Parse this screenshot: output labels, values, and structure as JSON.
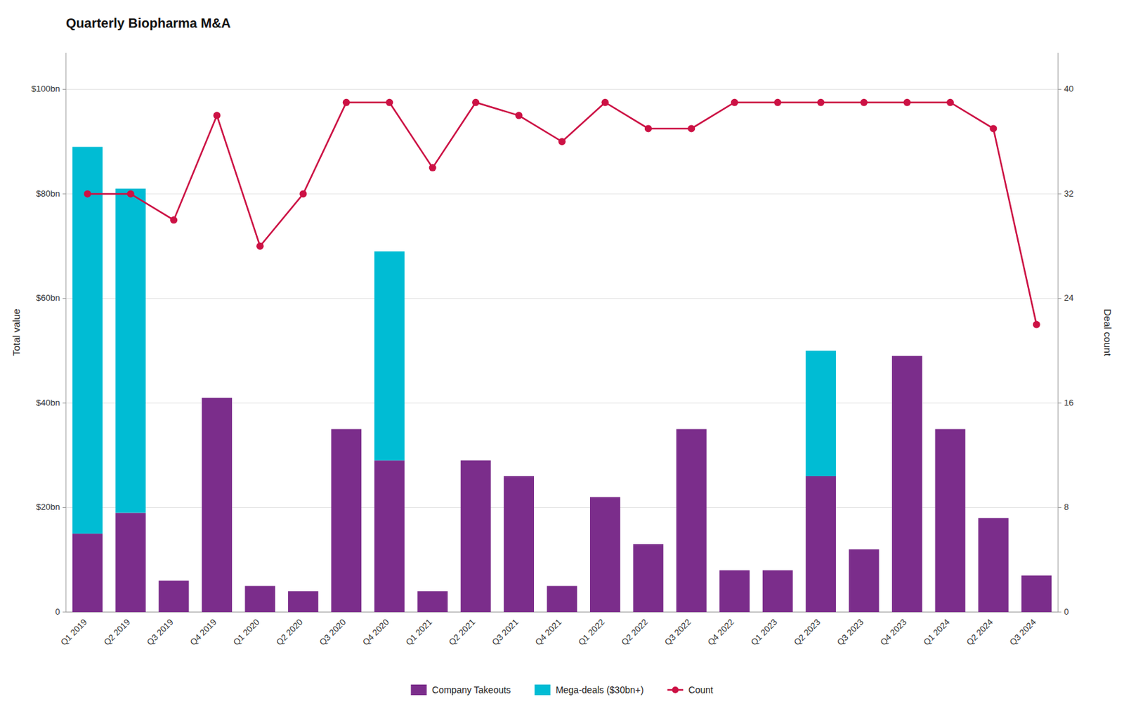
{
  "chart_data": {
    "type": "bar",
    "title": "Quarterly Biopharma M&A",
    "stacked": true,
    "grid": true,
    "legend": "bottom",
    "ylabel": "Total value",
    "y2label": "Deal count",
    "categories": [
      "Q1 2019",
      "Q2 2019",
      "Q3 2019",
      "Q4 2019",
      "Q1 2020",
      "Q2 2020",
      "Q3 2020",
      "Q4 2020",
      "Q1 2021",
      "Q2 2021",
      "Q3 2021",
      "Q4 2021",
      "Q1 2022",
      "Q2 2022",
      "Q3 2022",
      "Q4 2022",
      "Q1 2023",
      "Q2 2023",
      "Q3 2023",
      "Q4 2023",
      "Q1 2024",
      "Q2 2024",
      "Q3 2024"
    ],
    "series": [
      {
        "name": "Company Takeouts",
        "type": "bar",
        "color": "#7B2D8B",
        "values": [
          15,
          19,
          6,
          41,
          5,
          4,
          35,
          29,
          4,
          29,
          26,
          5,
          22,
          13,
          35,
          8,
          8,
          26,
          12,
          49,
          35,
          18,
          7
        ]
      },
      {
        "name": "Mega-deals ($30bn+)",
        "type": "bar",
        "color": "#00BCD4",
        "values": [
          74,
          62,
          0,
          0,
          0,
          0,
          0,
          40,
          0,
          0,
          0,
          0,
          0,
          0,
          0,
          0,
          0,
          24,
          0,
          0,
          0,
          0,
          0
        ]
      },
      {
        "name": "Count",
        "type": "line",
        "axis": "y2",
        "color": "#CC1144",
        "marker": "circle",
        "values": [
          32,
          32,
          30,
          38,
          28,
          32,
          39,
          39,
          34,
          39,
          38,
          36,
          39,
          37,
          37,
          39,
          39,
          39,
          39,
          39,
          39,
          37,
          22
        ]
      }
    ],
    "ylim": [
      0,
      107
    ],
    "yticks": [
      0,
      {
        "value": 20,
        "label": "$20bn"
      },
      {
        "value": 40,
        "label": "$40bn"
      },
      {
        "value": 60,
        "label": "$60bn"
      },
      {
        "value": 80,
        "label": "$80bn"
      },
      {
        "value": 100,
        "label": "$100bn"
      }
    ],
    "y2lim": [
      0,
      42.8
    ],
    "y2ticks": [
      0,
      8,
      16,
      24,
      32,
      40
    ]
  }
}
